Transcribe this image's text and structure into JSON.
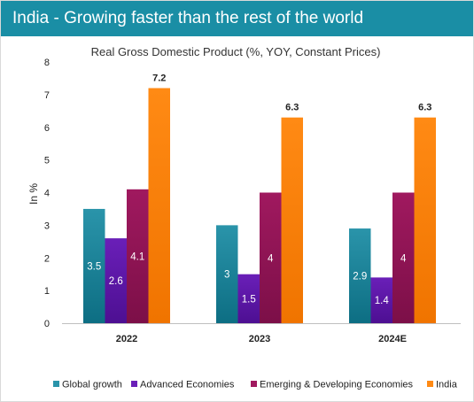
{
  "header": {
    "title": "India - Growing faster than the rest of the world",
    "background": "#1a8ea5"
  },
  "chart_data": {
    "type": "bar",
    "title": "Real Gross Domestic Product (%, YOY, Constant Prices)",
    "xlabel": "",
    "ylabel": "In %",
    "ylim": [
      0,
      8
    ],
    "yticks": [
      "0",
      "1",
      "2",
      "3",
      "4",
      "5",
      "6",
      "7",
      "8"
    ],
    "grid": false,
    "legend_position": "bottom",
    "categories": [
      "2022",
      "2023",
      "2024E"
    ],
    "series": [
      {
        "name": "Global growth",
        "color_top": "#2a94aa",
        "color_bottom": "#0d6e83",
        "values": [
          3.5,
          3,
          2.9
        ],
        "labels": [
          "3.5",
          "3",
          "2.9"
        ],
        "label_color": "#ffffff"
      },
      {
        "name": "Advanced Economies",
        "color_top": "#6a1fb8",
        "color_bottom": "#4d0f92",
        "values": [
          2.6,
          1.5,
          1.4
        ],
        "labels": [
          "2.6",
          "1.5",
          "1.4"
        ],
        "label_color": "#ffffff"
      },
      {
        "name": "Emerging & Developing Economies",
        "color_top": "#a0195f",
        "color_bottom": "#7c0f48",
        "values": [
          4.1,
          4,
          4
        ],
        "labels": [
          "4.1",
          "4",
          "4"
        ],
        "label_color": "#ffffff"
      },
      {
        "name": "India",
        "color_top": "#ff8a14",
        "color_bottom": "#f07400",
        "values": [
          7.2,
          6.3,
          6.3
        ],
        "labels": [
          "7.2",
          "6.3",
          "6.3"
        ],
        "label_color": "#222222"
      }
    ]
  }
}
